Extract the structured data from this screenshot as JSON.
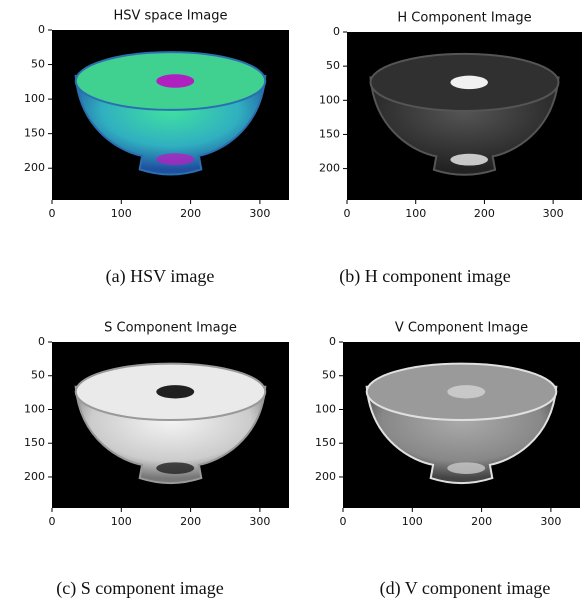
{
  "chart_data": [
    {
      "type": "image",
      "title": "HSV space Image",
      "caption": "(a) HSV image",
      "xlim": [
        0,
        342
      ],
      "ylim": [
        246,
        0
      ],
      "xticks": [
        0,
        100,
        200,
        300
      ],
      "yticks": [
        0,
        50,
        100,
        150,
        200
      ]
    },
    {
      "type": "image",
      "title": "H Component Image",
      "caption": "(b) H component image",
      "xlim": [
        0,
        342
      ],
      "ylim": [
        246,
        0
      ],
      "xticks": [
        0,
        100,
        200,
        300
      ],
      "yticks": [
        0,
        50,
        100,
        150,
        200
      ]
    },
    {
      "type": "image",
      "title": "S Component Image",
      "caption": "(c) S component image",
      "xlim": [
        0,
        342
      ],
      "ylim": [
        246,
        0
      ],
      "xticks": [
        0,
        100,
        200,
        300
      ],
      "yticks": [
        0,
        50,
        100,
        150,
        200
      ]
    },
    {
      "type": "image",
      "title": "V Component Image",
      "caption": "(d) V component image",
      "xlim": [
        0,
        342
      ],
      "ylim": [
        246,
        0
      ],
      "xticks": [
        0,
        100,
        200,
        300
      ],
      "yticks": [
        0,
        50,
        100,
        150,
        200
      ]
    }
  ]
}
